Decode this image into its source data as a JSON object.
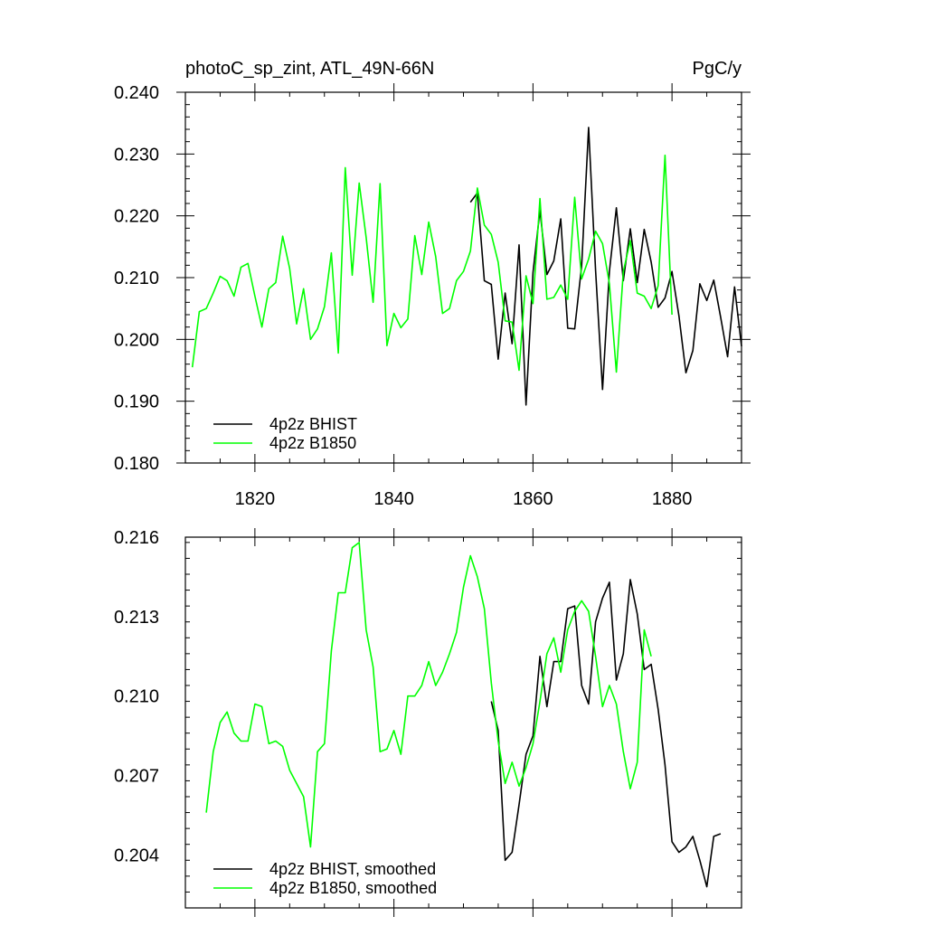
{
  "chart_data": [
    {
      "type": "line",
      "title_left": "photoC_sp_zint, ATL_49N-66N",
      "title_right": "PgC/y",
      "xlim": [
        1810,
        1890
      ],
      "ylim": [
        0.18,
        0.24
      ],
      "x_ticks": [
        1820,
        1840,
        1860,
        1880
      ],
      "y_ticks": [
        "0.180",
        "0.190",
        "0.200",
        "0.210",
        "0.220",
        "0.230",
        "0.240"
      ],
      "show_x_tick_labels": true,
      "legend_position": "bottom-left",
      "series": [
        {
          "name": "4p2z BHIST",
          "color": "#000000",
          "x": [
            1851,
            1852,
            1853,
            1854,
            1855,
            1856,
            1857,
            1858,
            1859,
            1860,
            1861,
            1862,
            1863,
            1864,
            1865,
            1866,
            1867,
            1868,
            1869,
            1870,
            1871,
            1872,
            1873,
            1874,
            1875,
            1876,
            1877,
            1878,
            1879,
            1880,
            1881,
            1882,
            1883,
            1884,
            1885,
            1886,
            1887,
            1888,
            1889,
            1890
          ],
          "y": [
            0.2222,
            0.2237,
            0.2095,
            0.2089,
            0.1968,
            0.2075,
            0.1993,
            0.2153,
            0.1894,
            0.2108,
            0.2209,
            0.2105,
            0.2127,
            0.2195,
            0.2018,
            0.2017,
            0.2119,
            0.2343,
            0.2112,
            0.1919,
            0.211,
            0.2213,
            0.2095,
            0.2179,
            0.2092,
            0.2178,
            0.2125,
            0.2052,
            0.2067,
            0.211,
            0.2038,
            0.1946,
            0.1982,
            0.209,
            0.2063,
            0.2096,
            0.2036,
            0.1972,
            0.2085,
            0.1989
          ]
        },
        {
          "name": "4p2z B1850",
          "color": "#00ff00",
          "x": [
            1811,
            1812,
            1813,
            1814,
            1815,
            1816,
            1817,
            1818,
            1819,
            1820,
            1821,
            1822,
            1823,
            1824,
            1825,
            1826,
            1827,
            1828,
            1829,
            1830,
            1831,
            1832,
            1833,
            1834,
            1835,
            1836,
            1837,
            1838,
            1839,
            1840,
            1841,
            1842,
            1843,
            1844,
            1845,
            1846,
            1847,
            1848,
            1849,
            1850,
            1851,
            1852,
            1853,
            1854,
            1855,
            1856,
            1857,
            1858,
            1859,
            1860,
            1861,
            1862,
            1863,
            1864,
            1865,
            1866,
            1867,
            1868,
            1869,
            1870,
            1871,
            1872,
            1873,
            1874,
            1875,
            1876,
            1877,
            1878,
            1879,
            1880
          ],
          "y": [
            0.1955,
            0.2045,
            0.205,
            0.2075,
            0.2102,
            0.2095,
            0.207,
            0.2117,
            0.2123,
            0.207,
            0.202,
            0.2082,
            0.2092,
            0.2167,
            0.2115,
            0.2025,
            0.2082,
            0.2,
            0.2017,
            0.2053,
            0.214,
            0.1978,
            0.2278,
            0.2104,
            0.2253,
            0.2165,
            0.206,
            0.2252,
            0.199,
            0.2042,
            0.2019,
            0.2033,
            0.2168,
            0.2105,
            0.219,
            0.2134,
            0.2042,
            0.205,
            0.2095,
            0.211,
            0.2143,
            0.2245,
            0.2185,
            0.217,
            0.2125,
            0.203,
            0.2028,
            0.195,
            0.2103,
            0.2058,
            0.2228,
            0.2065,
            0.2068,
            0.2088,
            0.2065,
            0.223,
            0.2098,
            0.213,
            0.2175,
            0.2155,
            0.209,
            0.1947,
            0.211,
            0.216,
            0.2075,
            0.207,
            0.205,
            0.2087,
            0.2298,
            0.204
          ]
        }
      ]
    },
    {
      "type": "line",
      "xlim": [
        1810,
        1890
      ],
      "ylim": [
        0.202,
        0.216
      ],
      "x_ticks": [
        1820,
        1840,
        1860,
        1880
      ],
      "y_ticks": [
        "0.204",
        "0.207",
        "0.210",
        "0.213",
        "0.216"
      ],
      "show_x_tick_labels": false,
      "legend_position": "bottom-left",
      "series": [
        {
          "name": "4p2z BHIST, smoothed",
          "color": "#000000",
          "x": [
            1854,
            1855,
            1856,
            1857,
            1858,
            1859,
            1860,
            1861,
            1862,
            1863,
            1864,
            1865,
            1866,
            1867,
            1868,
            1869,
            1870,
            1871,
            1872,
            1873,
            1874,
            1875,
            1876,
            1877,
            1878,
            1879,
            1880,
            1881,
            1882,
            1883,
            1884,
            1885,
            1886,
            1887
          ],
          "y": [
            0.2098,
            0.2087,
            0.2038,
            0.2041,
            0.2059,
            0.2078,
            0.2085,
            0.2115,
            0.2096,
            0.2113,
            0.2113,
            0.2133,
            0.2134,
            0.2104,
            0.2097,
            0.2128,
            0.2137,
            0.2143,
            0.2106,
            0.2116,
            0.2144,
            0.2131,
            0.211,
            0.2112,
            0.2095,
            0.2074,
            0.2045,
            0.2041,
            0.2043,
            0.2047,
            0.2038,
            0.2028,
            0.2047,
            0.2048
          ]
        },
        {
          "name": "4p2z B1850, smoothed",
          "color": "#00ff00",
          "x": [
            1813,
            1814,
            1815,
            1816,
            1817,
            1818,
            1819,
            1820,
            1821,
            1822,
            1823,
            1824,
            1825,
            1826,
            1827,
            1828,
            1829,
            1830,
            1831,
            1832,
            1833,
            1834,
            1835,
            1836,
            1837,
            1838,
            1839,
            1840,
            1841,
            1842,
            1843,
            1844,
            1845,
            1846,
            1847,
            1848,
            1849,
            1850,
            1851,
            1852,
            1853,
            1854,
            1855,
            1856,
            1857,
            1858,
            1859,
            1860,
            1861,
            1862,
            1863,
            1864,
            1865,
            1866,
            1867,
            1868,
            1869,
            1870,
            1871,
            1872,
            1873,
            1874,
            1875,
            1876,
            1877
          ],
          "y": [
            0.2056,
            0.2079,
            0.209,
            0.2094,
            0.2086,
            0.2083,
            0.2083,
            0.2097,
            0.2096,
            0.2082,
            0.2083,
            0.2081,
            0.2072,
            0.2067,
            0.2062,
            0.2043,
            0.2079,
            0.2082,
            0.2117,
            0.2139,
            0.2139,
            0.2156,
            0.2158,
            0.2125,
            0.2111,
            0.2079,
            0.208,
            0.2087,
            0.2078,
            0.21,
            0.21,
            0.2104,
            0.2113,
            0.2104,
            0.2109,
            0.2116,
            0.2124,
            0.2141,
            0.2153,
            0.2145,
            0.2133,
            0.2105,
            0.2083,
            0.2067,
            0.2075,
            0.2066,
            0.2073,
            0.2082,
            0.2098,
            0.2116,
            0.2122,
            0.2109,
            0.2125,
            0.2132,
            0.2136,
            0.2132,
            0.2115,
            0.2096,
            0.2104,
            0.2097,
            0.2079,
            0.2065,
            0.2075,
            0.2125,
            0.2115
          ]
        }
      ]
    }
  ]
}
